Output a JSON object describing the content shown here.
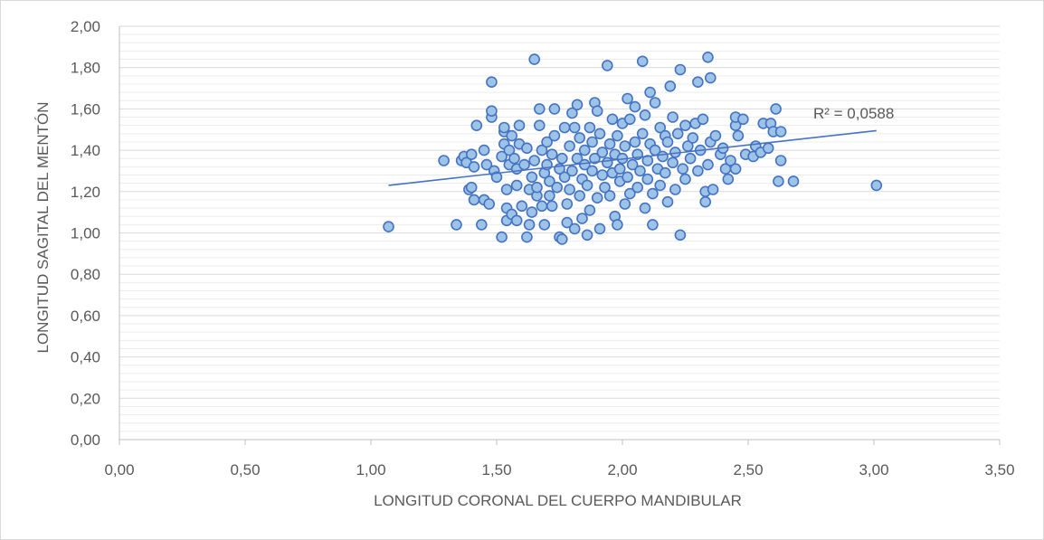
{
  "chart_data": {
    "type": "scatter",
    "title": "",
    "xlabel": "LONGITUD CORONAL DEL CUERPO MANDIBULAR",
    "ylabel": "LONGITUD SAGITAL DEL MENTÓN",
    "xlim": [
      0,
      3.5
    ],
    "ylim": [
      0,
      2
    ],
    "x_ticks": [
      {
        "value": 0,
        "label": "0,00"
      },
      {
        "value": 0.5,
        "label": "0,50"
      },
      {
        "value": 1,
        "label": "1,00"
      },
      {
        "value": 1.5,
        "label": "1,50"
      },
      {
        "value": 2,
        "label": "2,00"
      },
      {
        "value": 2.5,
        "label": "2,50"
      },
      {
        "value": 3,
        "label": "3,00"
      },
      {
        "value": 3.5,
        "label": "3,50"
      }
    ],
    "y_ticks": [
      {
        "value": 0,
        "label": "0,00"
      },
      {
        "value": 0.2,
        "label": "0,20"
      },
      {
        "value": 0.4,
        "label": "0,40"
      },
      {
        "value": 0.6,
        "label": "0,60"
      },
      {
        "value": 0.8,
        "label": "0,80"
      },
      {
        "value": 1,
        "label": "1,00"
      },
      {
        "value": 1.2,
        "label": "1,20"
      },
      {
        "value": 1.4,
        "label": "1,40"
      },
      {
        "value": 1.6,
        "label": "1,60"
      },
      {
        "value": 1.8,
        "label": "1,80"
      },
      {
        "value": 2,
        "label": "2,00"
      }
    ],
    "grid": "horizontal major and minor gridlines",
    "colors": {
      "marker_fill": "#9dc3e6",
      "marker_stroke": "#4472c4",
      "trendline": "#4472c4",
      "grid_major": "#d9d9d9",
      "grid_minor": "#ececec",
      "axis": "#bfbfbf",
      "text": "#595959"
    },
    "trendline": {
      "type": "linear",
      "from": [
        1.07,
        1.23
      ],
      "to": [
        3.01,
        1.495
      ],
      "r2_label": "R² = 0,0588"
    },
    "series": [
      {
        "points": [
          [
            1.07,
            1.03
          ],
          [
            1.29,
            1.35
          ],
          [
            1.34,
            1.04
          ],
          [
            1.36,
            1.35
          ],
          [
            1.37,
            1.37
          ],
          [
            1.38,
            1.34
          ],
          [
            1.39,
            1.21
          ],
          [
            1.4,
            1.22
          ],
          [
            1.4,
            1.38
          ],
          [
            1.41,
            1.32
          ],
          [
            1.41,
            1.16
          ],
          [
            1.42,
            1.52
          ],
          [
            1.44,
            1.04
          ],
          [
            1.45,
            1.16
          ],
          [
            1.45,
            1.4
          ],
          [
            1.46,
            1.33
          ],
          [
            1.47,
            1.14
          ],
          [
            1.48,
            1.56
          ],
          [
            1.48,
            1.59
          ],
          [
            1.48,
            1.73
          ],
          [
            1.49,
            1.3
          ],
          [
            1.5,
            1.27
          ],
          [
            1.52,
            0.98
          ],
          [
            1.52,
            1.37
          ],
          [
            1.53,
            1.43
          ],
          [
            1.53,
            1.49
          ],
          [
            1.53,
            1.51
          ],
          [
            1.54,
            1.06
          ],
          [
            1.54,
            1.12
          ],
          [
            1.54,
            1.21
          ],
          [
            1.55,
            1.33
          ],
          [
            1.55,
            1.4
          ],
          [
            1.56,
            1.09
          ],
          [
            1.56,
            1.47
          ],
          [
            1.57,
            1.36
          ],
          [
            1.58,
            1.06
          ],
          [
            1.58,
            1.23
          ],
          [
            1.58,
            1.31
          ],
          [
            1.59,
            1.43
          ],
          [
            1.59,
            1.52
          ],
          [
            1.6,
            1.13
          ],
          [
            1.61,
            1.33
          ],
          [
            1.62,
            0.98
          ],
          [
            1.62,
            1.41
          ],
          [
            1.63,
            1.04
          ],
          [
            1.63,
            1.21
          ],
          [
            1.64,
            1.27
          ],
          [
            1.64,
            1.1
          ],
          [
            1.65,
            1.84
          ],
          [
            1.65,
            1.35
          ],
          [
            1.66,
            1.18
          ],
          [
            1.66,
            1.22
          ],
          [
            1.67,
            1.6
          ],
          [
            1.67,
            1.52
          ],
          [
            1.68,
            1.13
          ],
          [
            1.68,
            1.4
          ],
          [
            1.69,
            1.29
          ],
          [
            1.69,
            1.04
          ],
          [
            1.7,
            1.44
          ],
          [
            1.7,
            1.33
          ],
          [
            1.71,
            1.25
          ],
          [
            1.71,
            1.18
          ],
          [
            1.72,
            1.13
          ],
          [
            1.72,
            1.38
          ],
          [
            1.73,
            1.6
          ],
          [
            1.73,
            1.47
          ],
          [
            1.74,
            1.22
          ],
          [
            1.75,
            0.98
          ],
          [
            1.75,
            1.31
          ],
          [
            1.76,
            0.97
          ],
          [
            1.76,
            1.36
          ],
          [
            1.77,
            1.51
          ],
          [
            1.77,
            1.27
          ],
          [
            1.78,
            1.05
          ],
          [
            1.78,
            1.14
          ],
          [
            1.79,
            1.42
          ],
          [
            1.79,
            1.21
          ],
          [
            1.8,
            1.3
          ],
          [
            1.8,
            1.58
          ],
          [
            1.81,
            1.02
          ],
          [
            1.81,
            1.51
          ],
          [
            1.82,
            1.62
          ],
          [
            1.82,
            1.36
          ],
          [
            1.83,
            1.18
          ],
          [
            1.83,
            1.46
          ],
          [
            1.84,
            1.26
          ],
          [
            1.84,
            1.07
          ],
          [
            1.85,
            1.33
          ],
          [
            1.85,
            1.4
          ],
          [
            1.86,
            0.99
          ],
          [
            1.86,
            1.23
          ],
          [
            1.87,
            1.51
          ],
          [
            1.87,
            1.11
          ],
          [
            1.88,
            1.44
          ],
          [
            1.88,
            1.3
          ],
          [
            1.89,
            1.36
          ],
          [
            1.89,
            1.63
          ],
          [
            1.9,
            1.17
          ],
          [
            1.9,
            1.59
          ],
          [
            1.91,
            1.02
          ],
          [
            1.91,
            1.48
          ],
          [
            1.92,
            1.28
          ],
          [
            1.92,
            1.39
          ],
          [
            1.93,
            1.22
          ],
          [
            1.94,
            1.34
          ],
          [
            1.94,
            1.81
          ],
          [
            1.95,
            1.43
          ],
          [
            1.95,
            1.18
          ],
          [
            1.96,
            1.55
          ],
          [
            1.96,
            1.29
          ],
          [
            1.97,
            1.08
          ],
          [
            1.97,
            1.38
          ],
          [
            1.98,
            1.04
          ],
          [
            1.98,
            1.47
          ],
          [
            1.99,
            1.31
          ],
          [
            1.99,
            1.25
          ],
          [
            2.0,
            1.53
          ],
          [
            2.0,
            1.36
          ],
          [
            2.01,
            1.14
          ],
          [
            2.01,
            1.42
          ],
          [
            2.02,
            1.65
          ],
          [
            2.02,
            1.27
          ],
          [
            2.03,
            1.55
          ],
          [
            2.03,
            1.19
          ],
          [
            2.04,
            1.33
          ],
          [
            2.05,
            1.44
          ],
          [
            2.05,
            1.61
          ],
          [
            2.06,
            1.22
          ],
          [
            2.06,
            1.38
          ],
          [
            2.07,
            1.3
          ],
          [
            2.08,
            1.48
          ],
          [
            2.08,
            1.83
          ],
          [
            2.09,
            1.12
          ],
          [
            2.09,
            1.57
          ],
          [
            2.1,
            1.35
          ],
          [
            2.1,
            1.26
          ],
          [
            2.11,
            1.68
          ],
          [
            2.11,
            1.43
          ],
          [
            2.12,
            1.04
          ],
          [
            2.12,
            1.19
          ],
          [
            2.13,
            1.63
          ],
          [
            2.13,
            1.4
          ],
          [
            2.14,
            1.31
          ],
          [
            2.15,
            1.51
          ],
          [
            2.15,
            1.23
          ],
          [
            2.16,
            1.37
          ],
          [
            2.17,
            1.47
          ],
          [
            2.17,
            1.29
          ],
          [
            2.18,
            1.15
          ],
          [
            2.18,
            1.44
          ],
          [
            2.19,
            1.71
          ],
          [
            2.2,
            1.34
          ],
          [
            2.2,
            1.56
          ],
          [
            2.21,
            1.21
          ],
          [
            2.21,
            1.39
          ],
          [
            2.22,
            1.48
          ],
          [
            2.23,
            0.99
          ],
          [
            2.23,
            1.79
          ],
          [
            2.24,
            1.31
          ],
          [
            2.25,
            1.52
          ],
          [
            2.25,
            1.26
          ],
          [
            2.26,
            1.42
          ],
          [
            2.27,
            1.36
          ],
          [
            2.28,
            1.46
          ],
          [
            2.29,
            1.53
          ],
          [
            2.3,
            1.73
          ],
          [
            2.3,
            1.3
          ],
          [
            2.31,
            1.4
          ],
          [
            2.32,
            1.55
          ],
          [
            2.33,
            1.15
          ],
          [
            2.33,
            1.2
          ],
          [
            2.34,
            1.85
          ],
          [
            2.34,
            1.33
          ],
          [
            2.35,
            1.75
          ],
          [
            2.35,
            1.44
          ],
          [
            2.36,
            1.21
          ],
          [
            2.37,
            1.47
          ],
          [
            2.39,
            1.38
          ],
          [
            2.4,
            1.41
          ],
          [
            2.41,
            1.31
          ],
          [
            2.42,
            1.26
          ],
          [
            2.43,
            1.35
          ],
          [
            2.45,
            1.52
          ],
          [
            2.45,
            1.56
          ],
          [
            2.45,
            1.31
          ],
          [
            2.46,
            1.47
          ],
          [
            2.48,
            1.55
          ],
          [
            2.49,
            1.38
          ],
          [
            2.52,
            1.37
          ],
          [
            2.53,
            1.42
          ],
          [
            2.55,
            1.39
          ],
          [
            2.56,
            1.53
          ],
          [
            2.58,
            1.41
          ],
          [
            2.59,
            1.53
          ],
          [
            2.6,
            1.49
          ],
          [
            2.61,
            1.6
          ],
          [
            2.62,
            1.25
          ],
          [
            2.63,
            1.35
          ],
          [
            2.63,
            1.49
          ],
          [
            2.68,
            1.25
          ],
          [
            3.01,
            1.23
          ]
        ]
      }
    ]
  }
}
